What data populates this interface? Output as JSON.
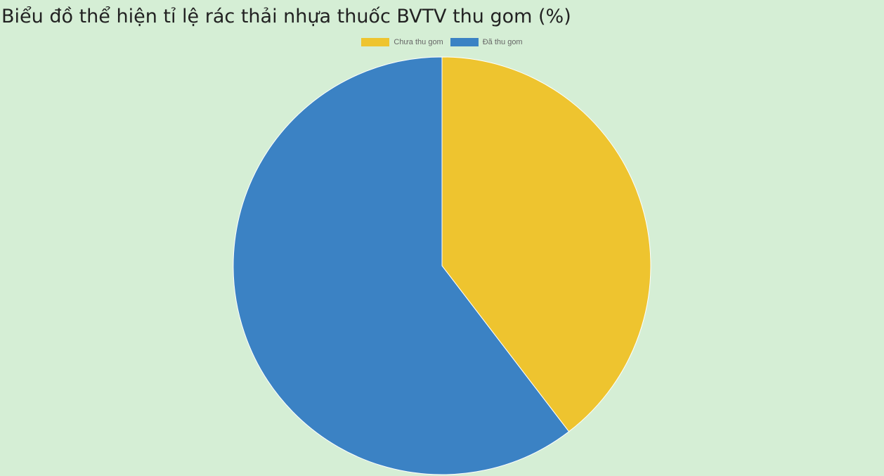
{
  "title": "Biểu đồ thể hiện tỉ lệ rác thải nhựa thuốc BVTV thu gom (%)",
  "colors": {
    "background": "#d5eed5",
    "slice_uncollected": "#eec42f",
    "slice_collected": "#3b82c4"
  },
  "chart_data": {
    "type": "pie",
    "title": "Biểu đồ thể hiện tỉ lệ rác thải nhựa thuốc BVTV thu gom (%)",
    "legend_position": "top",
    "categories": [
      "Chưa thu gom",
      "Đã thu gom"
    ],
    "values": [
      39.6,
      60.4
    ],
    "colors": [
      "#eec42f",
      "#3b82c4"
    ]
  }
}
